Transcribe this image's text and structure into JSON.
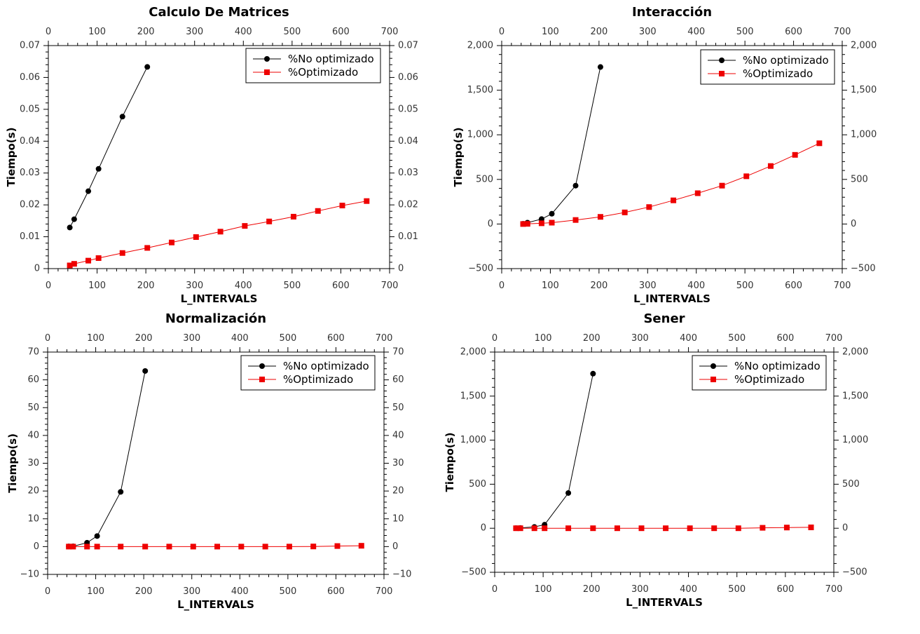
{
  "colors": {
    "no_optimizado": "#000000",
    "optimizado": "#ee0000"
  },
  "chart_data": [
    {
      "type": "line",
      "title": "Calculo De Matrices",
      "xlabel": "L_INTERVALS",
      "ylabel": "Tiempo(s)",
      "xlim": [
        0,
        700
      ],
      "ylim": [
        0,
        0.07
      ],
      "xticks": [
        0,
        100,
        200,
        300,
        400,
        500,
        600,
        700
      ],
      "xtick_labels": [
        "0",
        "100",
        "200",
        "300",
        "400",
        "500",
        "600",
        "700"
      ],
      "yticks": [
        0,
        0.01,
        0.02,
        0.03,
        0.04,
        0.05,
        0.06,
        0.07
      ],
      "ytick_labels": [
        "0",
        "0.01",
        "0.02",
        "0.03",
        "0.04",
        "0.05",
        "0.06",
        "0.07"
      ],
      "legend": "top-right",
      "grid": false,
      "series": [
        {
          "name": "%No optimizado",
          "marker": "circle",
          "color": "#000000",
          "x": [
            44,
            53,
            82,
            103,
            152,
            203
          ],
          "y": [
            0.0129,
            0.0155,
            0.0243,
            0.0313,
            0.0477,
            0.0633
          ]
        },
        {
          "name": "%Optimizado",
          "marker": "square",
          "color": "#ee0000",
          "x": [
            44,
            53,
            82,
            103,
            152,
            203,
            253,
            303,
            353,
            403,
            453,
            503,
            553,
            603,
            653
          ],
          "y": [
            0.001,
            0.0015,
            0.0025,
            0.0033,
            0.0049,
            0.0065,
            0.0082,
            0.0099,
            0.0116,
            0.0134,
            0.0148,
            0.0163,
            0.0181,
            0.0198,
            0.0212
          ]
        }
      ]
    },
    {
      "type": "line",
      "title": "Interacción",
      "xlabel": "L_INTERVALS",
      "ylabel": "Tiempo(s)",
      "xlim": [
        0,
        700
      ],
      "ylim": [
        -500,
        2000
      ],
      "xticks": [
        0,
        100,
        200,
        300,
        400,
        500,
        600,
        700
      ],
      "xtick_labels": [
        "0",
        "100",
        "200",
        "300",
        "400",
        "500",
        "600",
        "700"
      ],
      "yticks": [
        -500,
        0,
        500,
        1000,
        1500,
        2000
      ],
      "ytick_labels": [
        "−500",
        "0",
        "500",
        "1,000",
        "1,500",
        "2,000"
      ],
      "legend": "top-right",
      "grid": false,
      "series": [
        {
          "name": "%No optimizado",
          "marker": "circle",
          "color": "#000000",
          "x": [
            44,
            53,
            82,
            103,
            152,
            203
          ],
          "y": [
            2,
            15,
            55,
            115,
            430,
            1760
          ]
        },
        {
          "name": "%Optimizado",
          "marker": "square",
          "color": "#ee0000",
          "x": [
            44,
            53,
            82,
            103,
            152,
            203,
            253,
            303,
            353,
            403,
            453,
            503,
            553,
            603,
            653
          ],
          "y": [
            0,
            2,
            8,
            15,
            45,
            80,
            130,
            190,
            265,
            345,
            430,
            535,
            650,
            775,
            905
          ]
        }
      ]
    },
    {
      "type": "line",
      "title": "Normalización",
      "xlabel": "L_INTERVALS",
      "ylabel": "Tiempo(s)",
      "xlim": [
        0,
        700
      ],
      "ylim": [
        -10,
        70
      ],
      "xticks": [
        0,
        100,
        200,
        300,
        400,
        500,
        600,
        700
      ],
      "xtick_labels": [
        "0",
        "100",
        "200",
        "300",
        "400",
        "500",
        "600",
        "700"
      ],
      "yticks": [
        -10,
        0,
        10,
        20,
        30,
        40,
        50,
        60,
        70
      ],
      "ytick_labels": [
        "−10",
        "0",
        "10",
        "20",
        "30",
        "40",
        "50",
        "60",
        "70"
      ],
      "legend": "top-right",
      "grid": false,
      "series": [
        {
          "name": "%No optimizado",
          "marker": "circle",
          "color": "#000000",
          "x": [
            44,
            53,
            82,
            103,
            152,
            203
          ],
          "y": [
            0.05,
            0.1,
            1.4,
            3.8,
            19.7,
            63.2
          ]
        },
        {
          "name": "%Optimizado",
          "marker": "square",
          "color": "#ee0000",
          "x": [
            44,
            53,
            82,
            103,
            152,
            203,
            253,
            303,
            353,
            403,
            453,
            503,
            553,
            603,
            653
          ],
          "y": [
            0,
            0,
            0,
            0,
            0,
            0,
            0,
            0,
            0,
            0,
            0,
            0,
            0.05,
            0.2,
            0.3
          ]
        }
      ]
    },
    {
      "type": "line",
      "title": "Sener",
      "xlabel": "L_INTERVALS",
      "ylabel": "Tiempo(s)",
      "xlim": [
        0,
        700
      ],
      "ylim": [
        -500,
        2000
      ],
      "xticks": [
        0,
        100,
        200,
        300,
        400,
        500,
        600,
        700
      ],
      "xtick_labels": [
        "0",
        "100",
        "200",
        "300",
        "400",
        "500",
        "600",
        "700"
      ],
      "yticks": [
        -500,
        0,
        500,
        1000,
        1500,
        2000
      ],
      "ytick_labels": [
        "−500",
        "0",
        "500",
        "1,000",
        "1,500",
        "2,000"
      ],
      "legend": "top-right",
      "grid": false,
      "series": [
        {
          "name": "%No optimizado",
          "marker": "circle",
          "color": "#000000",
          "x": [
            44,
            53,
            82,
            103,
            152,
            203
          ],
          "y": [
            1,
            3,
            15,
            40,
            400,
            1755
          ]
        },
        {
          "name": "%Optimizado",
          "marker": "square",
          "color": "#ee0000",
          "x": [
            44,
            53,
            82,
            103,
            152,
            203,
            253,
            303,
            353,
            403,
            453,
            503,
            553,
            603,
            653
          ],
          "y": [
            0,
            0,
            0,
            0,
            0,
            0,
            0,
            0,
            0,
            0,
            0,
            0,
            5,
            8,
            10
          ]
        }
      ]
    }
  ]
}
